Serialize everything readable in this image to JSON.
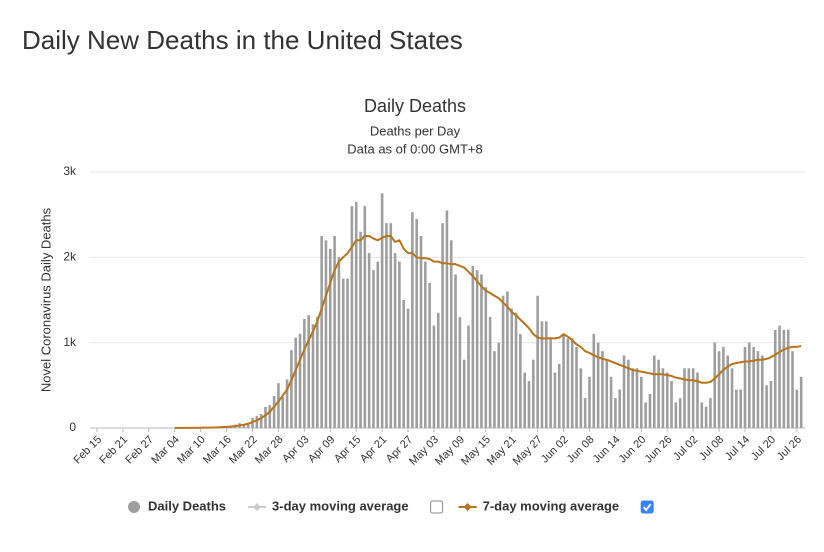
{
  "header": {
    "title": "Daily New Deaths in the United States"
  },
  "chart_data": {
    "type": "bar",
    "title": "Daily Deaths",
    "subtitle": [
      "Deaths per Day",
      "Data as of 0:00 GMT+8"
    ],
    "y_label": "Novel Coronavirus Daily Deaths",
    "categories": [
      "Feb 15",
      null,
      null,
      null,
      null,
      null,
      "Feb 21",
      null,
      null,
      null,
      null,
      null,
      "Feb 27",
      null,
      null,
      null,
      null,
      null,
      "Mar 04",
      null,
      null,
      null,
      null,
      null,
      "Mar 10",
      null,
      null,
      null,
      null,
      null,
      "Mar 16",
      null,
      null,
      null,
      null,
      null,
      "Mar 22",
      null,
      null,
      null,
      null,
      null,
      "Mar 28",
      null,
      null,
      null,
      null,
      null,
      "Apr 03",
      null,
      null,
      null,
      null,
      null,
      "Apr 09",
      null,
      null,
      null,
      null,
      null,
      "Apr 15",
      null,
      null,
      null,
      null,
      null,
      "Apr 21",
      null,
      null,
      null,
      null,
      null,
      "Apr 27",
      null,
      null,
      null,
      null,
      null,
      "May 03",
      null,
      null,
      null,
      null,
      null,
      "May 09",
      null,
      null,
      null,
      null,
      null,
      "May 15",
      null,
      null,
      null,
      null,
      null,
      "May 21",
      null,
      null,
      null,
      null,
      null,
      "May 27",
      null,
      null,
      null,
      null,
      null,
      "Jun 02",
      null,
      null,
      null,
      null,
      null,
      "Jun 08",
      null,
      null,
      null,
      null,
      null,
      "Jun 14",
      null,
      null,
      null,
      null,
      null,
      "Jun 20",
      null,
      null,
      null,
      null,
      null,
      "Jun 26",
      null,
      null,
      null,
      null,
      null,
      "Jul 02",
      null,
      null,
      null,
      null,
      null,
      "Jul 08",
      null,
      null,
      null,
      null,
      null,
      "Jul 14",
      null,
      null,
      null,
      null,
      null,
      "Jul 20",
      null,
      null,
      null,
      null,
      null,
      "Jul 26",
      null
    ],
    "series": [
      {
        "name": "Daily Deaths",
        "color": "#9e9e9e",
        "kind": "bar",
        "values": [
          0,
          0,
          0,
          0,
          0,
          0,
          0,
          0,
          0,
          0,
          0,
          0,
          0,
          0,
          1,
          1,
          5,
          1,
          2,
          1,
          1,
          4,
          4,
          3,
          4,
          8,
          8,
          7,
          10,
          14,
          18,
          23,
          40,
          56,
          49,
          63,
          117,
          139,
          163,
          247,
          267,
          375,
          525,
          363,
          569,
          911,
          1059,
          1104,
          1278,
          1322,
          1216,
          1305,
          2250,
          2200,
          2100,
          2250,
          2000,
          1750,
          1750,
          2600,
          2650,
          2300,
          2600,
          2050,
          1850,
          1950,
          2750,
          2400,
          2400,
          2050,
          1950,
          1500,
          1400,
          2530,
          2450,
          2250,
          1950,
          1700,
          1200,
          1350,
          2400,
          2550,
          2200,
          1800,
          1300,
          800,
          1200,
          1900,
          1850,
          1800,
          1650,
          1300,
          900,
          1000,
          1550,
          1600,
          1400,
          1350,
          1100,
          650,
          550,
          800,
          1550,
          1250,
          1250,
          1050,
          650,
          750,
          1100,
          1050,
          1050,
          950,
          700,
          350,
          600,
          1100,
          1000,
          900,
          800,
          600,
          350,
          450,
          850,
          800,
          700,
          700,
          600,
          300,
          400,
          850,
          800,
          700,
          650,
          550,
          300,
          350,
          700,
          700,
          700,
          650,
          300,
          250,
          350,
          1000,
          900,
          950,
          850,
          700,
          450,
          450,
          950,
          1000,
          950,
          900,
          850,
          500,
          550,
          1150,
          1200,
          1150,
          1150,
          900,
          450,
          600
        ]
      },
      {
        "name": "3-day moving average",
        "color": "#cccccc",
        "kind": "line",
        "visible": false,
        "checked": false
      },
      {
        "name": "7-day moving average",
        "color": "#b8741a",
        "kind": "line",
        "visible": true,
        "checked": true,
        "values": [
          null,
          null,
          null,
          null,
          null,
          null,
          null,
          null,
          null,
          null,
          null,
          null,
          null,
          null,
          null,
          null,
          null,
          null,
          0,
          1,
          1,
          2,
          2,
          2,
          3,
          4,
          5,
          6,
          8,
          10,
          13,
          17,
          22,
          30,
          38,
          50,
          70,
          90,
          115,
          150,
          190,
          250,
          310,
          380,
          450,
          560,
          680,
          800,
          920,
          1030,
          1130,
          1250,
          1400,
          1550,
          1700,
          1850,
          1950,
          2000,
          2050,
          2120,
          2200,
          2200,
          2250,
          2250,
          2220,
          2200,
          2230,
          2250,
          2250,
          2180,
          2200,
          2100,
          2050,
          2050,
          2000,
          1990,
          1990,
          1980,
          1950,
          1950,
          1930,
          1930,
          1920,
          1920,
          1900,
          1880,
          1830,
          1780,
          1720,
          1660,
          1610,
          1580,
          1550,
          1520,
          1470,
          1420,
          1360,
          1320,
          1270,
          1220,
          1170,
          1100,
          1060,
          1050,
          1050,
          1050,
          1050,
          1060,
          1100,
          1070,
          1030,
          980,
          950,
          900,
          880,
          850,
          830,
          810,
          800,
          780,
          760,
          740,
          720,
          700,
          680,
          670,
          660,
          650,
          640,
          630,
          630,
          630,
          620,
          610,
          590,
          580,
          570,
          560,
          560,
          550,
          530,
          530,
          540,
          580,
          630,
          680,
          720,
          750,
          760,
          770,
          780,
          780,
          790,
          800,
          800,
          810,
          830,
          860,
          890,
          920,
          940,
          950,
          950,
          960
        ]
      }
    ],
    "ylim": [
      0,
      3000
    ],
    "yticks": [
      0,
      {
        "value": 1000,
        "label": "1k"
      },
      {
        "value": 2000,
        "label": "2k"
      },
      {
        "value": 3000,
        "label": "3k"
      }
    ],
    "grid": true
  }
}
